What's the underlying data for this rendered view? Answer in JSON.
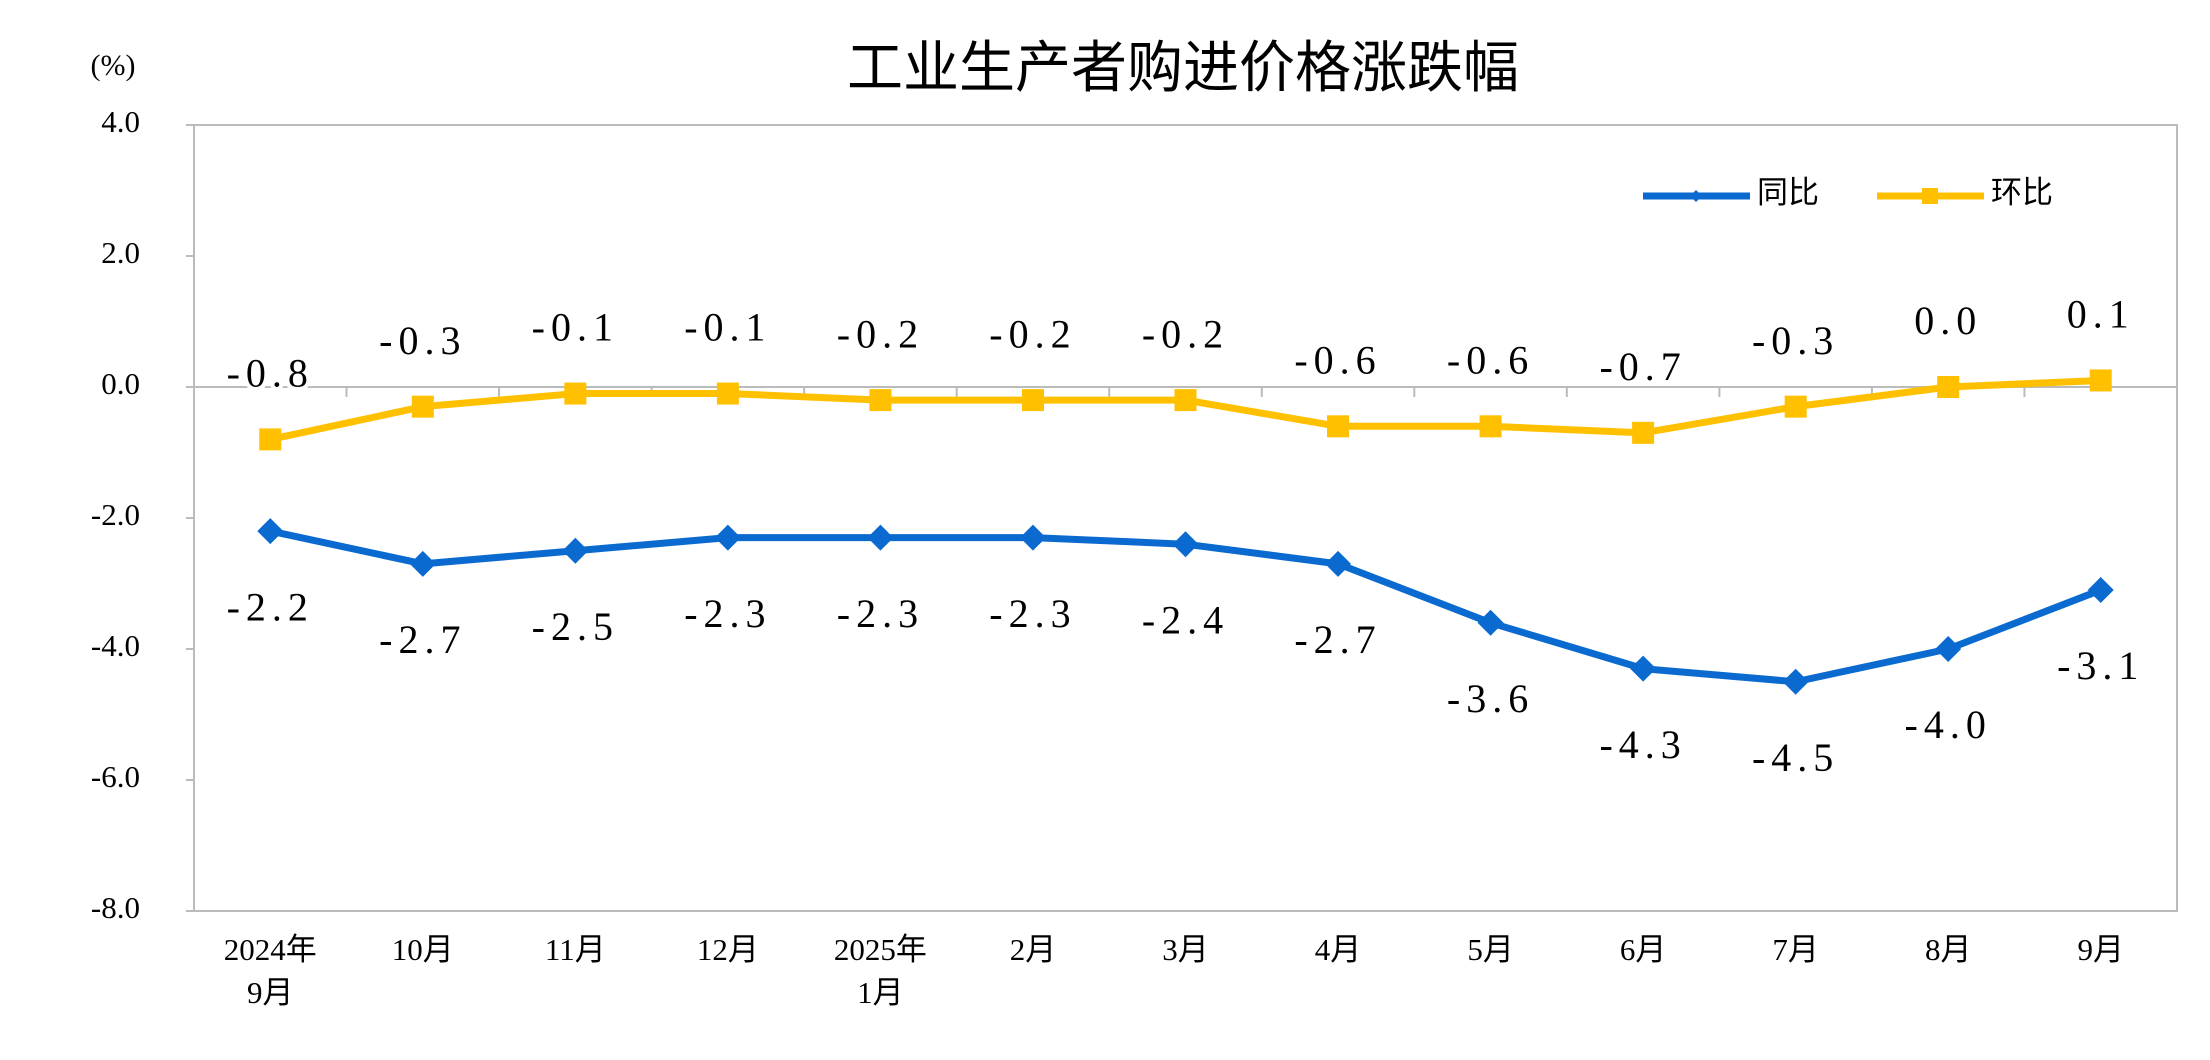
{
  "chart_data": {
    "type": "line",
    "title": "工业生产者购进价格涨跌幅",
    "y_label": "(%)",
    "categories": [
      "2024年\n9月",
      "10月",
      "11月",
      "12月",
      "2025年\n1月",
      "2月",
      "3月",
      "4月",
      "5月",
      "6月",
      "7月",
      "8月",
      "9月"
    ],
    "series": [
      {
        "name": "同比",
        "color": "#0a6ad0",
        "marker": "diamond",
        "values": [
          -2.2,
          -2.7,
          -2.5,
          -2.3,
          -2.3,
          -2.3,
          -2.4,
          -2.7,
          -3.6,
          -4.3,
          -4.5,
          -4.0,
          -3.1
        ],
        "value_labels": [
          "-2.2",
          "-2.7",
          "-2.5",
          "-2.3",
          "-2.3",
          "-2.3",
          "-2.4",
          "-2.7",
          "-3.6",
          "-4.3",
          "-4.5",
          "-4.0",
          "-3.1"
        ]
      },
      {
        "name": "环比",
        "color": "#ffc000",
        "marker": "square",
        "values": [
          -0.8,
          -0.3,
          -0.1,
          -0.1,
          -0.2,
          -0.2,
          -0.2,
          -0.6,
          -0.6,
          -0.7,
          -0.3,
          0.0,
          0.1
        ],
        "value_labels": [
          "-0.8",
          "-0.3",
          "-0.1",
          "-0.1",
          "-0.2",
          "-0.2",
          "-0.2",
          "-0.6",
          "-0.6",
          "-0.7",
          "-0.3",
          "0.0",
          "0.1"
        ]
      }
    ],
    "ylim": [
      -8,
      4
    ],
    "yticks": [
      {
        "value": -8,
        "label": "-8.0"
      },
      {
        "value": -6,
        "label": "-6.0"
      },
      {
        "value": -4,
        "label": "-4.0"
      },
      {
        "value": -2,
        "label": "-2.0"
      },
      {
        "value": 0,
        "label": "0.0"
      },
      {
        "value": 2,
        "label": "2.0"
      },
      {
        "value": 4,
        "label": "4.0"
      }
    ],
    "legend": "upper right",
    "grid": false
  }
}
